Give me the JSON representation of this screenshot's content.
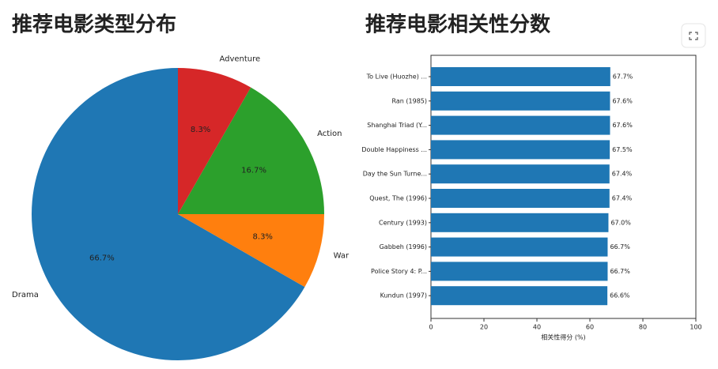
{
  "chart_data": [
    {
      "type": "pie",
      "title": "推荐电影类型分布",
      "categories": [
        "Drama",
        "War",
        "Action",
        "Adventure"
      ],
      "values": [
        66.7,
        8.3,
        16.7,
        8.3
      ],
      "value_labels": [
        "66.7%",
        "8.3%",
        "16.7%",
        "8.3%"
      ],
      "colors": [
        "#1f77b4",
        "#ff7f0e",
        "#2ca02c",
        "#d62728"
      ]
    },
    {
      "type": "barh",
      "title": "推荐电影相关性分数",
      "categories": [
        "To Live (Huozhe) ...",
        "Ran (1985)",
        "Shanghai Triad (Y...",
        "Double Happiness ...",
        "Day the Sun Turne...",
        "Quest, The (1996)",
        "Century (1993)",
        "Gabbeh (1996)",
        "Police Story 4: P...",
        "Kundun (1997)"
      ],
      "values": [
        67.7,
        67.6,
        67.6,
        67.5,
        67.4,
        67.4,
        67.0,
        66.7,
        66.7,
        66.6
      ],
      "value_labels": [
        "67.7%",
        "67.6%",
        "67.6%",
        "67.5%",
        "67.4%",
        "67.4%",
        "67.0%",
        "66.7%",
        "66.7%",
        "66.6%"
      ],
      "color": "#1f77b4",
      "xlabel": "相关性得分 (%)",
      "xlim": [
        0,
        100
      ],
      "xticks": [
        0,
        20,
        40,
        60,
        80,
        100
      ]
    }
  ]
}
